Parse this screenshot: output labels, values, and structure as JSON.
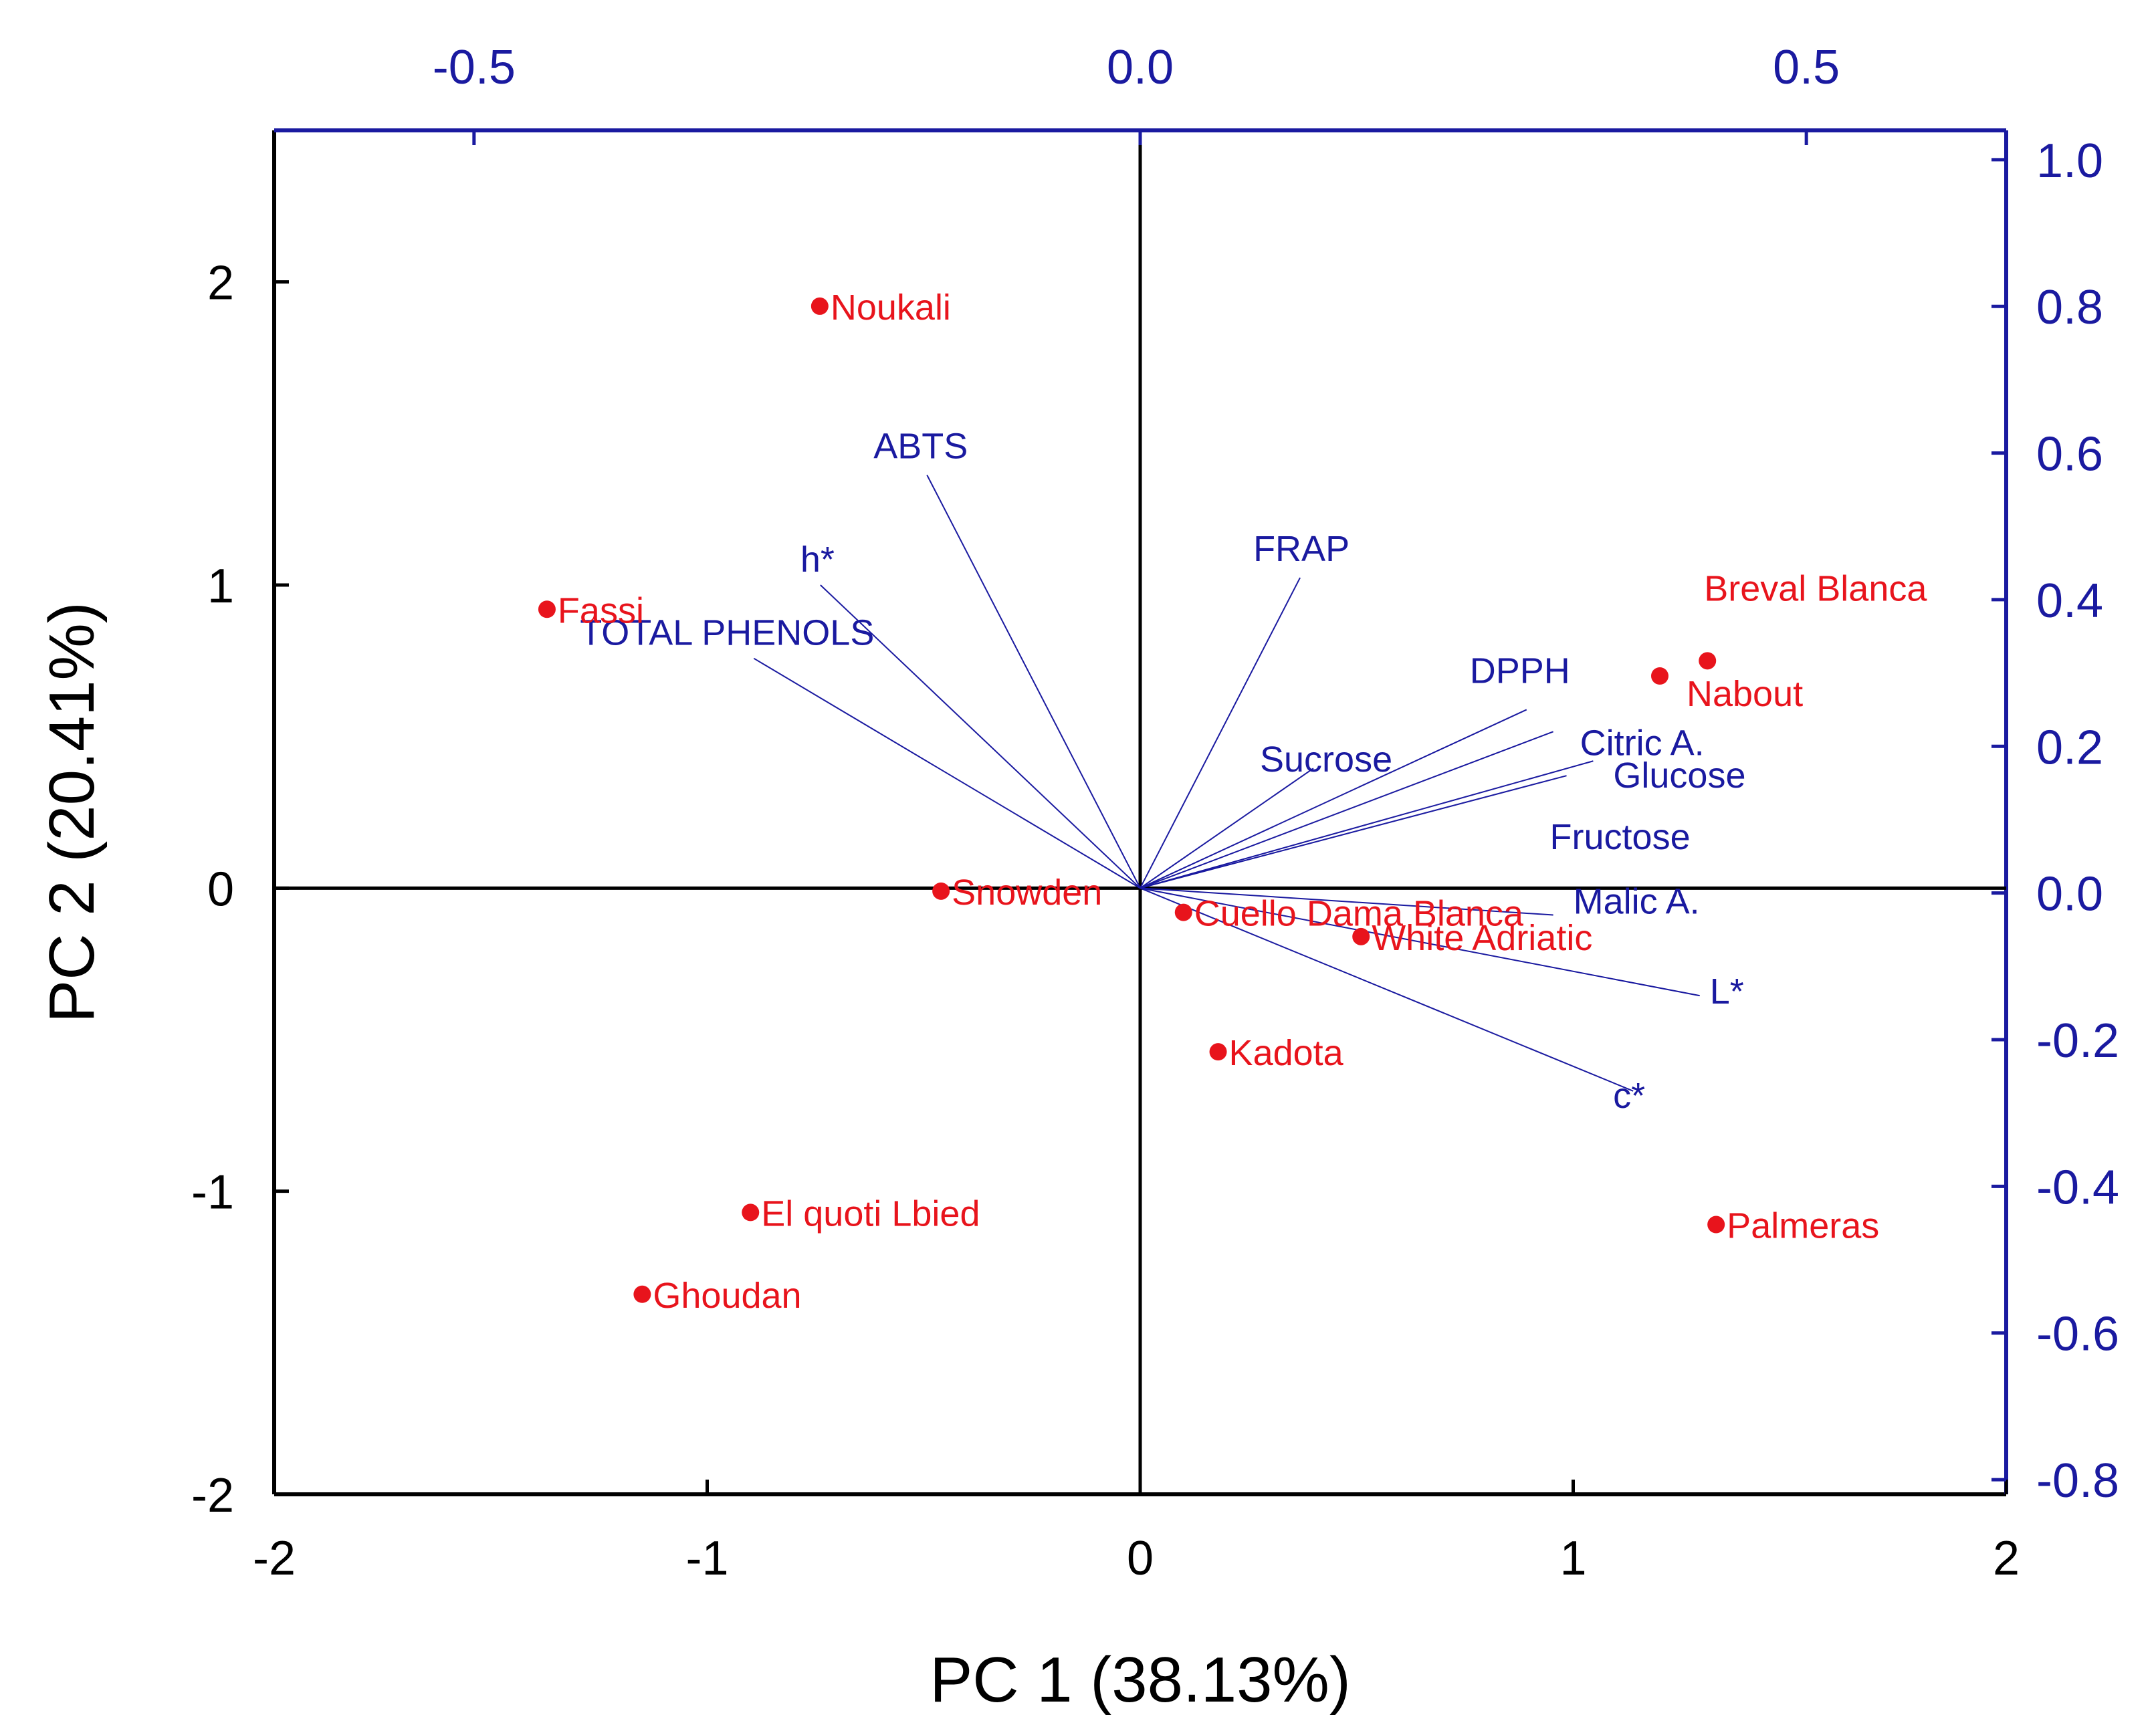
{
  "chart_data": {
    "type": "scatter",
    "title": "",
    "xlabel": "PC 1 (38.13%)",
    "ylabel": "PC 2 (20.41%)",
    "xlim": [
      -2,
      2
    ],
    "ylim": [
      -2,
      2.5
    ],
    "x_ticks": [
      "-2",
      "-1",
      "0",
      "1",
      "2"
    ],
    "y_ticks": [
      "-2",
      "-1",
      "0",
      "1",
      "2"
    ],
    "secondary_x": {
      "range": [
        -0.65,
        0.65
      ],
      "ticks": [
        "-0.5",
        "0.0",
        "0.5"
      ]
    },
    "secondary_y": {
      "range": [
        -0.82,
        1.04
      ],
      "ticks": [
        "-0.8",
        "-0.6",
        "-0.4",
        "-0.2",
        "0.0",
        "0.2",
        "0.4",
        "0.6",
        "0.8",
        "1.0"
      ]
    },
    "colors": {
      "scores": "#e8141c",
      "loadings": "#1a1aa0",
      "axes": "#1a1aa0",
      "frame": "#000000"
    },
    "scores": [
      {
        "name": "Noukali",
        "x": -0.74,
        "y": 1.92
      },
      {
        "name": "Fassi",
        "x": -1.37,
        "y": 0.92
      },
      {
        "name": "Breval Blanca",
        "x": 1.31,
        "y": 0.75
      },
      {
        "name": "Nabout",
        "x": 1.2,
        "y": 0.7
      },
      {
        "name": "Snowden",
        "x": -0.46,
        "y": -0.01
      },
      {
        "name": "Cuello Dama Blanca",
        "x": 0.1,
        "y": -0.08
      },
      {
        "name": "White Adriatic",
        "x": 0.51,
        "y": -0.16
      },
      {
        "name": "Kadota",
        "x": 0.18,
        "y": -0.54
      },
      {
        "name": "El quoti Lbied",
        "x": -0.9,
        "y": -1.07
      },
      {
        "name": "Ghoudan",
        "x": -1.15,
        "y": -1.34
      },
      {
        "name": "Palmeras",
        "x": 1.33,
        "y": -1.11
      }
    ],
    "loadings": [
      {
        "name": "ABTS",
        "x": -0.16,
        "y": 0.57
      },
      {
        "name": "h*",
        "x": -0.24,
        "y": 0.42
      },
      {
        "name": "TOTAL PHENOLS",
        "x": -0.29,
        "y": 0.32
      },
      {
        "name": "FRAP",
        "x": 0.12,
        "y": 0.43
      },
      {
        "name": "DPPH",
        "x": 0.29,
        "y": 0.25
      },
      {
        "name": "Citric A.",
        "x": 0.31,
        "y": 0.22
      },
      {
        "name": "Sucrose",
        "x": 0.13,
        "y": 0.17
      },
      {
        "name": "Glucose",
        "x": 0.34,
        "y": 0.18
      },
      {
        "name": "Fructose",
        "x": 0.32,
        "y": 0.16
      },
      {
        "name": "Malic A.",
        "x": 0.31,
        "y": -0.03
      },
      {
        "name": "L*",
        "x": 0.42,
        "y": -0.14
      },
      {
        "name": "c*",
        "x": 0.37,
        "y": -0.27
      }
    ]
  }
}
